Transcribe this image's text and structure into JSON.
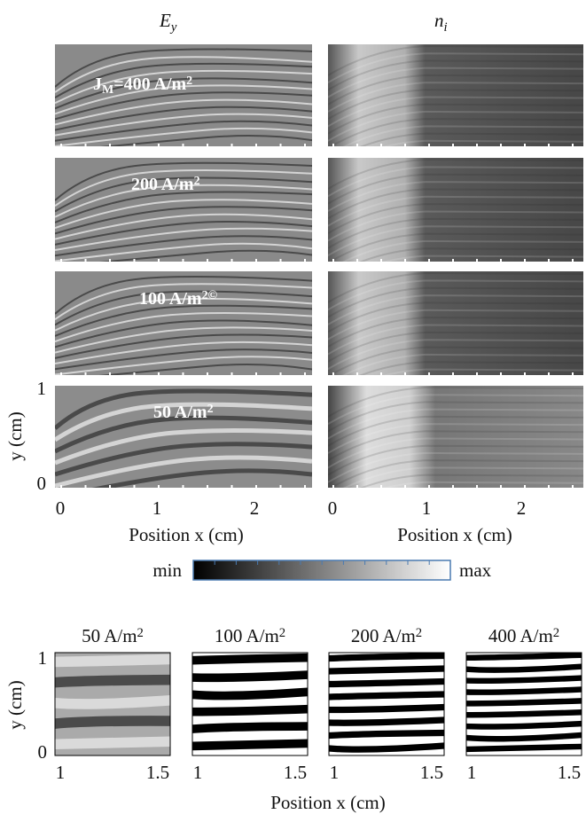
{
  "top_columns": [
    {
      "symbol": "E",
      "subscript": "y"
    },
    {
      "symbol": "n",
      "subscript": "i"
    }
  ],
  "top_rows": [
    {
      "lead": "J",
      "lead_sub": "M",
      "main": "=400 A/m",
      "sup": "2"
    },
    {
      "main": "200 A/m",
      "sup": "2"
    },
    {
      "main": "100 A/m",
      "sup": "2©"
    },
    {
      "main": "50 A/m",
      "sup": "2"
    }
  ],
  "top_axes": {
    "y_label": "y (cm)",
    "y_ticks": [
      1,
      0
    ],
    "x_label": "Position x (cm)",
    "x_ticks": [
      0,
      1,
      2
    ]
  },
  "colorbar": {
    "min_label": "min",
    "max_label": "max"
  },
  "bottom_panels": [
    {
      "main": "50 A/m",
      "sup": "2"
    },
    {
      "main": "100 A/m",
      "sup": "2"
    },
    {
      "main": "200 A/m",
      "sup": "2"
    },
    {
      "main": "400 A/m",
      "sup": "2"
    }
  ],
  "bottom_axes": {
    "y_label": "y (cm)",
    "y_ticks": [
      1,
      0
    ],
    "x_label": "Position x (cm)",
    "x_ticks": [
      1,
      1.5
    ]
  }
}
